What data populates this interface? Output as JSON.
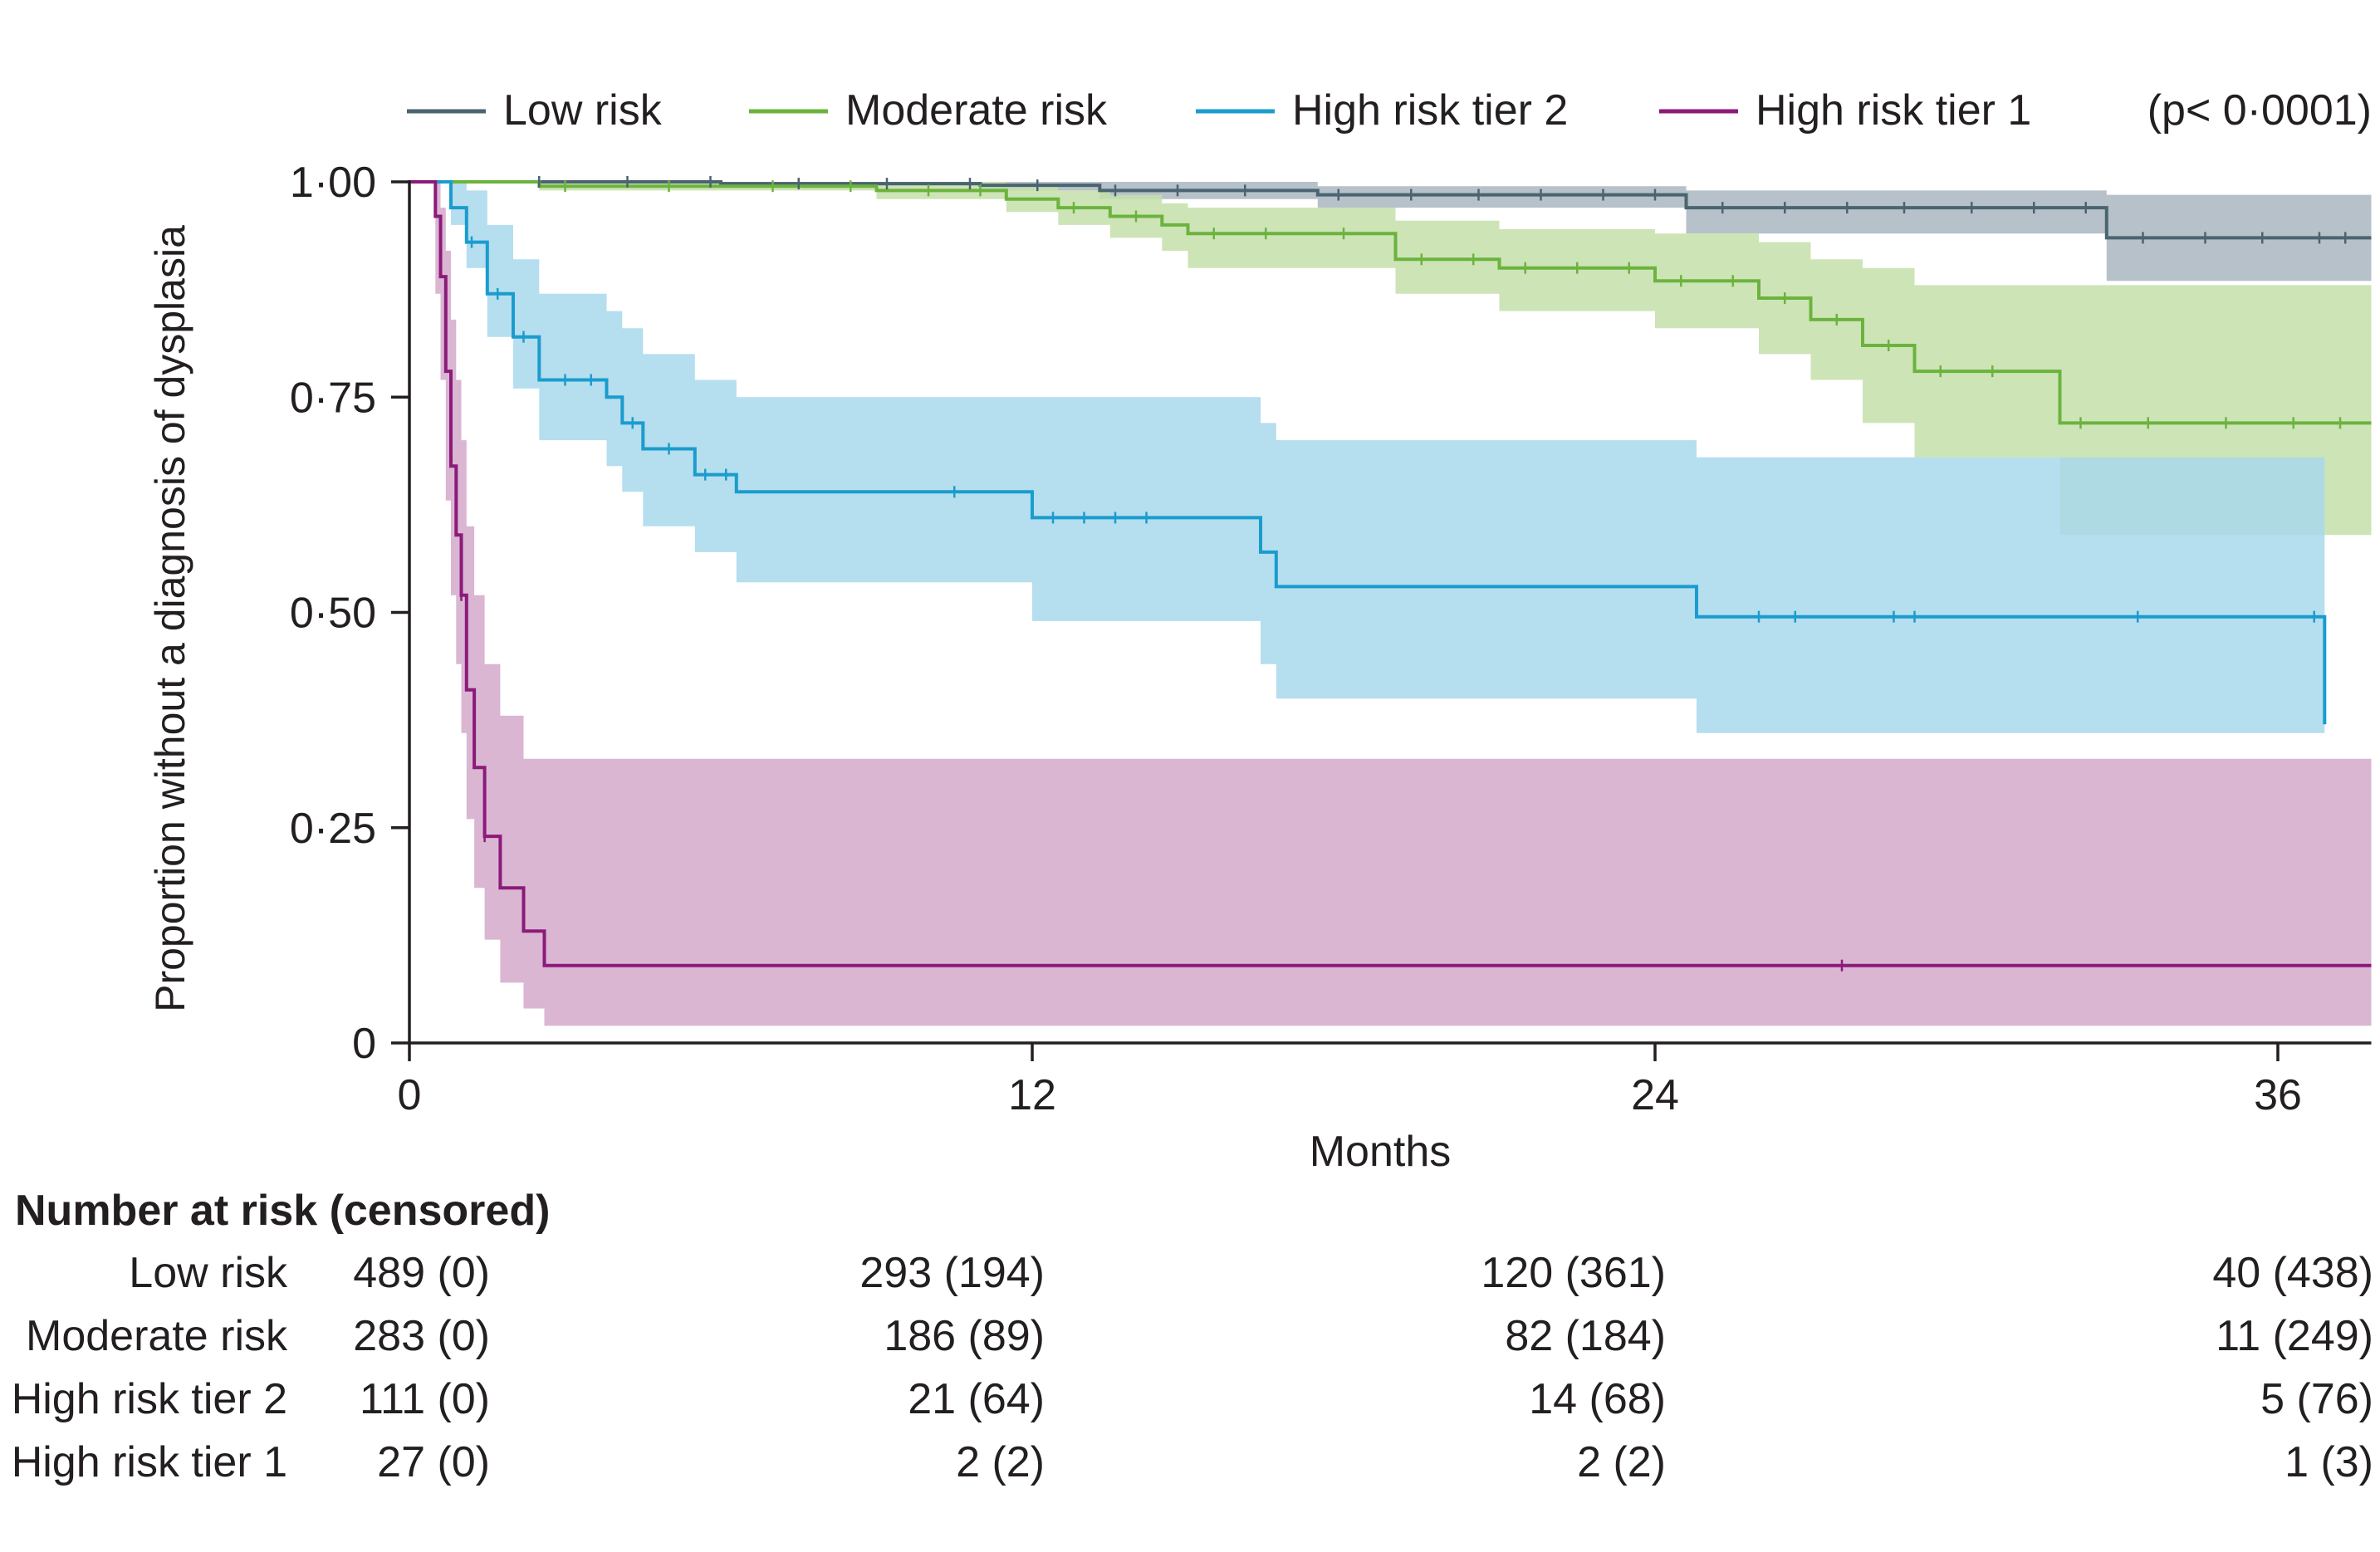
{
  "chart_data": {
    "type": "line",
    "subtype": "kaplan-meier",
    "title": "",
    "xlabel": "Months",
    "ylabel": "Proportion without a diagnosis of dysplasia",
    "xlim": [
      0,
      37.8
    ],
    "ylim": [
      0,
      1
    ],
    "x_ticks": [
      0,
      12,
      24,
      36
    ],
    "y_ticks": [
      {
        "value": 0,
        "label": "0"
      },
      {
        "value": 0.25,
        "label": "0·25"
      },
      {
        "value": 0.5,
        "label": "0·50"
      },
      {
        "value": 0.75,
        "label": "0·75"
      },
      {
        "value": 1.0,
        "label": "1·00"
      }
    ],
    "pvalue": "(p< 0·0001)",
    "legend_position": "top",
    "series": [
      {
        "name": "Low risk",
        "color": "#4a6470",
        "band_color": "#a9b6bf",
        "steps": [
          [
            0,
            1.0
          ],
          [
            6,
            0.998
          ],
          [
            11,
            0.996
          ],
          [
            13.3,
            0.99
          ],
          [
            17.5,
            0.985
          ],
          [
            24.6,
            0.97
          ],
          [
            32.7,
            0.935
          ],
          [
            37.8,
            0.935
          ]
        ],
        "ci_low": [
          [
            0,
            1.0
          ],
          [
            6,
            0.995
          ],
          [
            11,
            0.99
          ],
          [
            13.3,
            0.98
          ],
          [
            17.5,
            0.97
          ],
          [
            24.6,
            0.94
          ],
          [
            32.7,
            0.885
          ],
          [
            37.8,
            0.885
          ]
        ],
        "ci_high": [
          [
            0,
            1.0
          ],
          [
            6,
            1.0
          ],
          [
            11,
            1.0
          ],
          [
            13.3,
            1.0
          ],
          [
            17.5,
            0.995
          ],
          [
            24.6,
            0.99
          ],
          [
            32.7,
            0.985
          ],
          [
            37.8,
            0.985
          ]
        ],
        "censored": [
          2.5,
          4.2,
          5.8,
          7.5,
          9.2,
          10.8,
          12.1,
          13.6,
          14.8,
          16.1,
          17.9,
          19.3,
          20.6,
          21.8,
          23.0,
          24.0,
          25.3,
          26.5,
          27.7,
          28.8,
          30.1,
          31.3,
          32.3,
          33.4,
          34.6,
          35.7,
          36.8,
          37.3
        ]
      },
      {
        "name": "Moderate risk",
        "color": "#6cb33e",
        "band_color": "#c4dfaa",
        "steps": [
          [
            0,
            1.0
          ],
          [
            2.5,
            0.995
          ],
          [
            9,
            0.99
          ],
          [
            11.5,
            0.98
          ],
          [
            12.5,
            0.97
          ],
          [
            13.5,
            0.96
          ],
          [
            14.5,
            0.95
          ],
          [
            15,
            0.94
          ],
          [
            19,
            0.91
          ],
          [
            21,
            0.9
          ],
          [
            24,
            0.885
          ],
          [
            26,
            0.865
          ],
          [
            27,
            0.84
          ],
          [
            28,
            0.81
          ],
          [
            29,
            0.78
          ],
          [
            31.8,
            0.72
          ],
          [
            37.8,
            0.72
          ]
        ],
        "ci_low": [
          [
            0,
            1.0
          ],
          [
            2.5,
            0.99
          ],
          [
            9,
            0.98
          ],
          [
            11.5,
            0.965
          ],
          [
            12.5,
            0.95
          ],
          [
            13.5,
            0.935
          ],
          [
            14.5,
            0.92
          ],
          [
            15,
            0.9
          ],
          [
            19,
            0.87
          ],
          [
            21,
            0.85
          ],
          [
            24,
            0.83
          ],
          [
            26,
            0.8
          ],
          [
            27,
            0.77
          ],
          [
            28,
            0.72
          ],
          [
            29,
            0.68
          ],
          [
            31.8,
            0.59
          ],
          [
            37.8,
            0.59
          ]
        ],
        "ci_high": [
          [
            0,
            1.0
          ],
          [
            2.5,
            1.0
          ],
          [
            9,
            1.0
          ],
          [
            11.5,
            0.995
          ],
          [
            12.5,
            0.99
          ],
          [
            13.5,
            0.985
          ],
          [
            14.5,
            0.975
          ],
          [
            15,
            0.97
          ],
          [
            19,
            0.955
          ],
          [
            21,
            0.945
          ],
          [
            24,
            0.94
          ],
          [
            26,
            0.93
          ],
          [
            27,
            0.91
          ],
          [
            28,
            0.9
          ],
          [
            29,
            0.88
          ],
          [
            31.8,
            0.88
          ],
          [
            37.8,
            0.88
          ]
        ],
        "censored": [
          3,
          5,
          7,
          8.5,
          10,
          11,
          12.8,
          14,
          15.5,
          16.5,
          18,
          19.5,
          20.5,
          21.5,
          22.5,
          23.5,
          24.5,
          25.5,
          26.5,
          27.5,
          28.5,
          29.5,
          30.5,
          32.2,
          33.5,
          35,
          36.3,
          37.2
        ]
      },
      {
        "name": "High risk tier 2",
        "color": "#1a9ccd",
        "band_color": "#a8d8ec",
        "steps": [
          [
            0,
            1.0
          ],
          [
            0.8,
            0.97
          ],
          [
            1.1,
            0.93
          ],
          [
            1.5,
            0.87
          ],
          [
            2.0,
            0.82
          ],
          [
            2.5,
            0.77
          ],
          [
            3.8,
            0.75
          ],
          [
            4.1,
            0.72
          ],
          [
            4.5,
            0.69
          ],
          [
            5.5,
            0.66
          ],
          [
            6.3,
            0.64
          ],
          [
            12,
            0.61
          ],
          [
            16.4,
            0.57
          ],
          [
            16.7,
            0.53
          ],
          [
            24.8,
            0.495
          ],
          [
            36.9,
            0.37
          ]
        ],
        "ci_low": [
          [
            0,
            1.0
          ],
          [
            0.8,
            0.95
          ],
          [
            1.1,
            0.9
          ],
          [
            1.5,
            0.82
          ],
          [
            2.0,
            0.76
          ],
          [
            2.5,
            0.7
          ],
          [
            3.8,
            0.67
          ],
          [
            4.1,
            0.64
          ],
          [
            4.5,
            0.6
          ],
          [
            5.5,
            0.57
          ],
          [
            6.3,
            0.535
          ],
          [
            12,
            0.49
          ],
          [
            16.4,
            0.44
          ],
          [
            16.7,
            0.4
          ],
          [
            24.8,
            0.36
          ],
          [
            36.9,
            0.36
          ]
        ],
        "ci_high": [
          [
            0,
            1.0
          ],
          [
            0.8,
            1.0
          ],
          [
            1.1,
            0.99
          ],
          [
            1.5,
            0.95
          ],
          [
            2.0,
            0.91
          ],
          [
            2.5,
            0.87
          ],
          [
            3.8,
            0.85
          ],
          [
            4.1,
            0.83
          ],
          [
            4.5,
            0.8
          ],
          [
            5.5,
            0.77
          ],
          [
            6.3,
            0.75
          ],
          [
            12,
            0.75
          ],
          [
            16.4,
            0.72
          ],
          [
            16.7,
            0.7
          ],
          [
            24.8,
            0.68
          ],
          [
            36.9,
            0.68
          ]
        ],
        "censored": [
          1.2,
          1.7,
          2.2,
          3.0,
          3.5,
          4.3,
          5.0,
          5.7,
          6.1,
          10.5,
          12.4,
          13.0,
          13.6,
          14.2,
          26.0,
          26.7,
          28.6,
          29.0,
          33.3,
          36.7
        ],
        "end_x": 36.9
      },
      {
        "name": "High risk tier 1",
        "color": "#8b1a7a",
        "band_color": "#d3a9cb",
        "steps": [
          [
            0,
            1.0
          ],
          [
            0.5,
            0.96
          ],
          [
            0.6,
            0.89
          ],
          [
            0.7,
            0.78
          ],
          [
            0.8,
            0.67
          ],
          [
            0.9,
            0.59
          ],
          [
            1.0,
            0.52
          ],
          [
            1.1,
            0.41
          ],
          [
            1.25,
            0.32
          ],
          [
            1.45,
            0.24
          ],
          [
            1.75,
            0.18
          ],
          [
            2.2,
            0.13
          ],
          [
            2.6,
            0.09
          ],
          [
            37.8,
            0.09
          ]
        ],
        "ci_low": [
          [
            0,
            1.0
          ],
          [
            0.5,
            0.87
          ],
          [
            0.6,
            0.77
          ],
          [
            0.7,
            0.63
          ],
          [
            0.8,
            0.52
          ],
          [
            0.9,
            0.44
          ],
          [
            1.0,
            0.36
          ],
          [
            1.1,
            0.26
          ],
          [
            1.25,
            0.18
          ],
          [
            1.45,
            0.12
          ],
          [
            1.75,
            0.07
          ],
          [
            2.2,
            0.04
          ],
          [
            2.6,
            0.02
          ],
          [
            37.8,
            0.02
          ]
        ],
        "ci_high": [
          [
            0,
            1.0
          ],
          [
            0.5,
            1.0
          ],
          [
            0.6,
            0.97
          ],
          [
            0.7,
            0.92
          ],
          [
            0.8,
            0.84
          ],
          [
            0.9,
            0.77
          ],
          [
            1.0,
            0.7
          ],
          [
            1.1,
            0.6
          ],
          [
            1.25,
            0.52
          ],
          [
            1.45,
            0.44
          ],
          [
            1.75,
            0.38
          ],
          [
            2.2,
            0.33
          ],
          [
            2.6,
            0.33
          ],
          [
            37.8,
            0.33
          ]
        ],
        "censored": [
          1.0,
          1.45,
          27.6
        ]
      }
    ],
    "risk_table": {
      "title": "Number at risk (censored)",
      "times": [
        0,
        12,
        24,
        36
      ],
      "rows": [
        {
          "label": "Low risk",
          "values": [
            "489 (0)",
            "293 (194)",
            "120 (361)",
            "40 (438)"
          ]
        },
        {
          "label": "Moderate risk",
          "values": [
            "283 (0)",
            "186 (89)",
            "82 (184)",
            "11 (249)"
          ]
        },
        {
          "label": "High risk tier 2",
          "values": [
            "111 (0)",
            "21 (64)",
            "14 (68)",
            "5 (76)"
          ]
        },
        {
          "label": "High risk tier 1",
          "values": [
            "27 (0)",
            "2 (2)",
            "2 (2)",
            "1 (3)"
          ]
        }
      ]
    }
  }
}
